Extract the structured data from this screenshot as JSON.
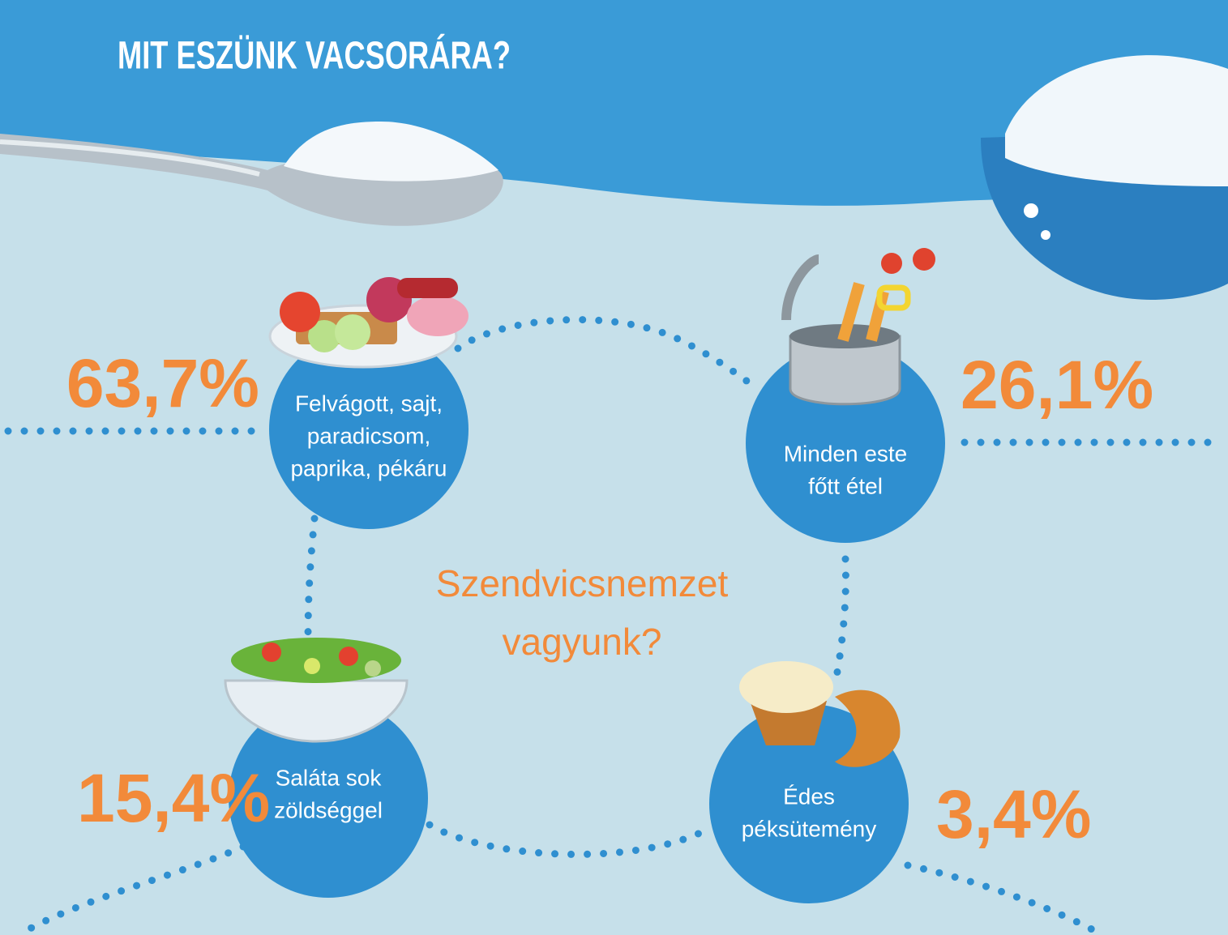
{
  "title": "MIT ESZÜNK VACSORÁRA?",
  "center_text": [
    "Szendvicsnemzet",
    "vagyunk?"
  ],
  "items": [
    {
      "label": [
        "Felvágott, sajt,",
        "paradicsom,",
        "paprika, pékáru"
      ],
      "percent": "63,7%"
    },
    {
      "label": [
        "Minden este",
        "főtt étel"
      ],
      "percent": "26,1%"
    },
    {
      "label": [
        "Saláta sok",
        "zöldséggel"
      ],
      "percent": "15,4%"
    },
    {
      "label": [
        "Édes",
        "péksütemény"
      ],
      "percent": "3,4%"
    }
  ]
}
